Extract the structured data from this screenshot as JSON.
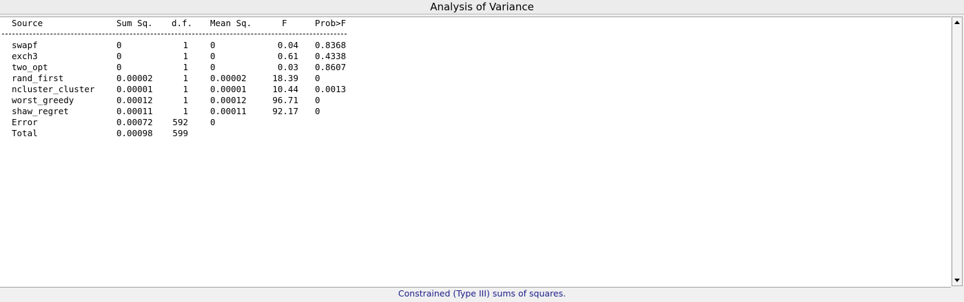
{
  "window": {
    "title": "Analysis of Variance",
    "footer": "Constrained (Type III) sums of squares."
  },
  "table": {
    "headers": {
      "source": "Source",
      "sum_sq": "Sum Sq.",
      "df": "d.f.",
      "mean_sq": "Mean Sq.",
      "f": "F",
      "prob": "Prob>F"
    },
    "rows": [
      {
        "source": "swapf",
        "sum_sq": "0",
        "df": "1",
        "mean_sq": "0",
        "f": "0.04",
        "prob": "0.8368"
      },
      {
        "source": "exch3",
        "sum_sq": "0",
        "df": "1",
        "mean_sq": "0",
        "f": "0.61",
        "prob": "0.4338"
      },
      {
        "source": "two_opt",
        "sum_sq": "0",
        "df": "1",
        "mean_sq": "0",
        "f": "0.03",
        "prob": "0.8607"
      },
      {
        "source": "rand_first",
        "sum_sq": "0.00002",
        "df": "1",
        "mean_sq": "0.00002",
        "f": "18.39",
        "prob": "0"
      },
      {
        "source": "ncluster_cluster",
        "sum_sq": "0.00001",
        "df": "1",
        "mean_sq": "0.00001",
        "f": "10.44",
        "prob": "0.0013"
      },
      {
        "source": "worst_greedy",
        "sum_sq": "0.00012",
        "df": "1",
        "mean_sq": "0.00012",
        "f": "96.71",
        "prob": "0"
      },
      {
        "source": "shaw_regret",
        "sum_sq": "0.00011",
        "df": "1",
        "mean_sq": "0.00011",
        "f": "92.17",
        "prob": "0"
      },
      {
        "source": "Error",
        "sum_sq": "0.00072",
        "df": "592",
        "mean_sq": "0"
      },
      {
        "source": "Total",
        "sum_sq": "0.00098",
        "df": "599"
      }
    ]
  }
}
